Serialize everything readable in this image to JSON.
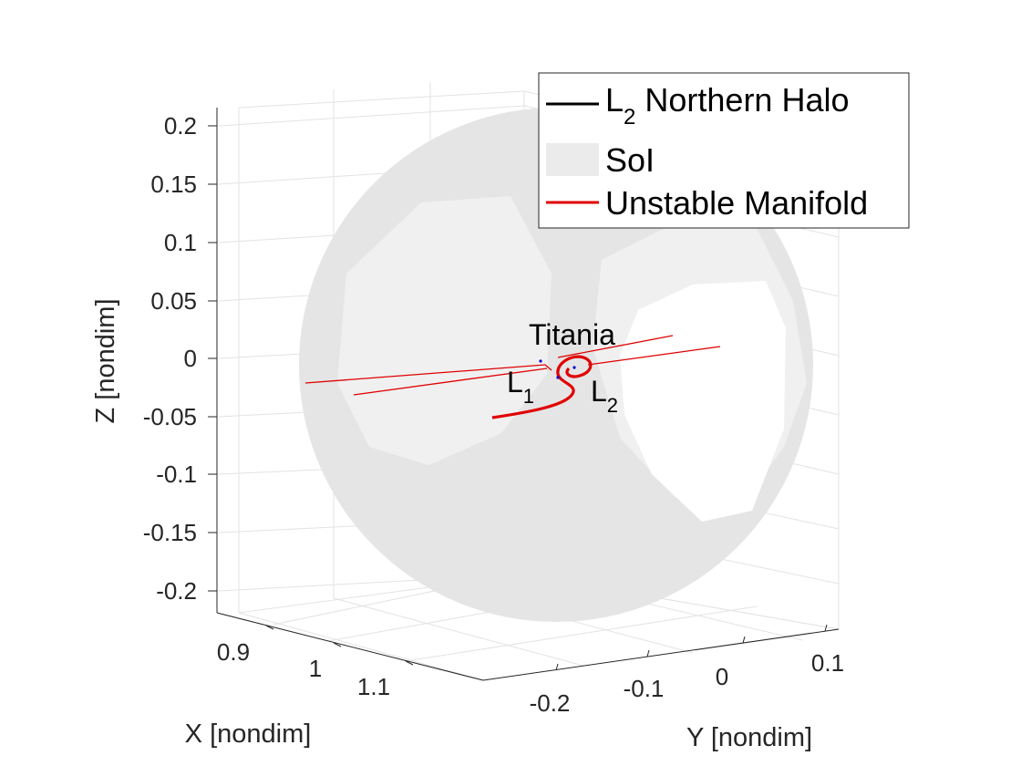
{
  "chart_data": {
    "type": "line",
    "projection": "3d",
    "title": "",
    "xlabel": "X [nondim]",
    "ylabel": "Y [nondim]",
    "zlabel": "Z [nondim]",
    "x_ticks": [
      "0.9",
      "1",
      "1.1"
    ],
    "y_ticks": [
      "-0.2",
      "-0.1",
      "0",
      "0.1"
    ],
    "z_ticks": [
      "0.2",
      "0.15",
      "0.1",
      "0.05",
      "0",
      "-0.05",
      "-0.1",
      "-0.15",
      "-0.2"
    ],
    "xlim": [
      0.85,
      1.15
    ],
    "ylim": [
      -0.25,
      0.15
    ],
    "zlim": [
      -0.22,
      0.22
    ],
    "grid": true,
    "legend_position": "top-right",
    "legend": [
      {
        "label_main": "L",
        "label_sub": "2",
        "label_rest": " Northern Halo",
        "color": "#000000",
        "kind": "line"
      },
      {
        "label_main": "SoI",
        "label_sub": "",
        "label_rest": "",
        "color": "#ebebeb",
        "kind": "patch"
      },
      {
        "label_main": "Unstable Manifold",
        "label_sub": "",
        "label_rest": "",
        "color": "#e00000",
        "kind": "line"
      }
    ],
    "annotations": [
      {
        "main": "Titania",
        "sub": ""
      },
      {
        "main": "L",
        "sub": "1"
      },
      {
        "main": "L",
        "sub": "2"
      }
    ],
    "points": [
      {
        "name": "Titania",
        "x": 1.0,
        "y": 0.0,
        "z": 0.0
      },
      {
        "name": "L1",
        "x": 0.95,
        "y": 0.0,
        "z": 0.0
      },
      {
        "name": "L2",
        "x": 1.05,
        "y": 0.0,
        "z": 0.0
      }
    ],
    "series": [
      {
        "name": "L2 Northern Halo",
        "color": "#000000"
      },
      {
        "name": "SoI",
        "color": "#ebebeb"
      },
      {
        "name": "Unstable Manifold",
        "color": "#e00000"
      }
    ]
  }
}
